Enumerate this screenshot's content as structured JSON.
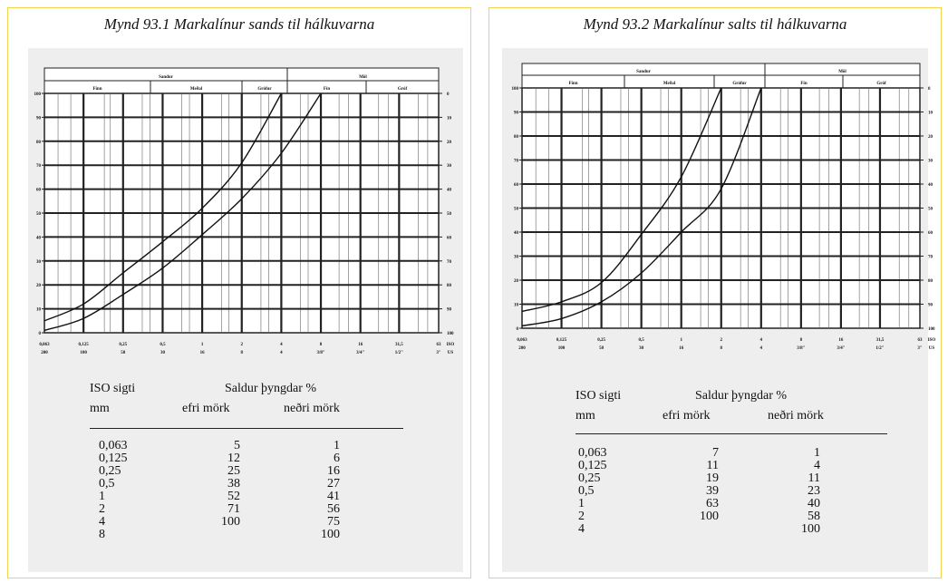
{
  "colors": {
    "panel_border": "#f3d24e",
    "panel_fill": "#eeeeee",
    "grid": "#222222"
  },
  "chart_data": [
    {
      "type": "line",
      "title": "Mynd 93.1  Markalínur sands til hálkuvarna",
      "header": {
        "top": [
          "Sandur",
          "Möl"
        ],
        "sub": [
          "Fínn",
          "Meðal",
          "Grófur",
          "Fín",
          "Gróf"
        ]
      },
      "x_ticks_mm": [
        "0,063",
        "0,125",
        "0,25",
        "0,5",
        "1",
        "2",
        "4",
        "8",
        "16",
        "31,5",
        "63"
      ],
      "x_ticks_us": [
        "200",
        "100",
        "50",
        "30",
        "16",
        "8",
        "4",
        "3/8\"",
        "3/4\"",
        "1/2\"",
        "3\""
      ],
      "x_unit": [
        "ISO",
        "US"
      ],
      "y_ticks_left": [
        "100",
        "90",
        "80",
        "70",
        "60",
        "50",
        "40",
        "30",
        "20",
        "10",
        "0"
      ],
      "y_ticks_right": [
        "0",
        "10",
        "20",
        "30",
        "40",
        "50",
        "60",
        "70",
        "80",
        "90",
        "100"
      ],
      "series": [
        {
          "name": "efri mörk",
          "x": [
            "0,063",
            "0,125",
            "0,25",
            "0,5",
            "1",
            "2",
            "4"
          ],
          "values": [
            5,
            12,
            25,
            38,
            52,
            71,
            100
          ]
        },
        {
          "name": "neðri mörk",
          "x": [
            "0,063",
            "0,125",
            "0,25",
            "0,5",
            "1",
            "2",
            "4",
            "8"
          ],
          "values": [
            1,
            6,
            16,
            27,
            41,
            56,
            75,
            100
          ]
        }
      ],
      "table": {
        "col1_head": "ISO sigti",
        "col1_unit": "mm",
        "group_head": "Saldur  þyngdar %",
        "col2_head": "efri mörk",
        "col3_head": "neðri mörk",
        "sizes": [
          "0,063",
          "0,125",
          "0,25",
          "0,5",
          "1",
          "2",
          "4",
          "8"
        ],
        "upper": [
          "5",
          "12",
          "25",
          "38",
          "52",
          "71",
          "100",
          ""
        ],
        "lower": [
          "1",
          "6",
          "16",
          "27",
          "41",
          "56",
          "75",
          "100"
        ]
      }
    },
    {
      "type": "line",
      "title": "Mynd 93.2  Markalínur salts til hálkuvarna",
      "header": {
        "top": [
          "Sandur",
          "Möl"
        ],
        "sub": [
          "Fínn",
          "Meðal",
          "Grófur",
          "Fín",
          "Gróf"
        ]
      },
      "x_ticks_mm": [
        "0,063",
        "0,125",
        "0,25",
        "0,5",
        "1",
        "2",
        "4",
        "8",
        "16",
        "31,5",
        "63"
      ],
      "x_ticks_us": [
        "200",
        "100",
        "50",
        "30",
        "16",
        "8",
        "4",
        "3/8\"",
        "3/4\"",
        "1/2\"",
        "3\""
      ],
      "x_unit": [
        "ISO",
        "US"
      ],
      "y_ticks_left": [
        "100",
        "90",
        "80",
        "70",
        "60",
        "50",
        "40",
        "30",
        "20",
        "10",
        "0"
      ],
      "y_ticks_right": [
        "0",
        "10",
        "20",
        "30",
        "40",
        "50",
        "60",
        "70",
        "80",
        "90",
        "100"
      ],
      "series": [
        {
          "name": "efri mörk",
          "x": [
            "0,063",
            "0,125",
            "0,25",
            "0,5",
            "1",
            "2"
          ],
          "values": [
            7,
            11,
            19,
            39,
            63,
            100
          ]
        },
        {
          "name": "neðri mörk",
          "x": [
            "0,063",
            "0,125",
            "0,25",
            "0,5",
            "1",
            "2",
            "4"
          ],
          "values": [
            1,
            4,
            11,
            23,
            40,
            58,
            100
          ]
        }
      ],
      "table": {
        "col1_head": "ISO sigti",
        "col1_unit": "mm",
        "group_head": "Saldur  þyngdar %",
        "col2_head": "efri mörk",
        "col3_head": "neðri mörk",
        "sizes": [
          "0,063",
          "0,125",
          "0,25",
          "0,5",
          "1",
          "2",
          "4"
        ],
        "upper": [
          "7",
          "11",
          "19",
          "39",
          "63",
          "100",
          ""
        ],
        "lower": [
          "1",
          "4",
          "11",
          "23",
          "40",
          "58",
          "100"
        ]
      }
    }
  ]
}
